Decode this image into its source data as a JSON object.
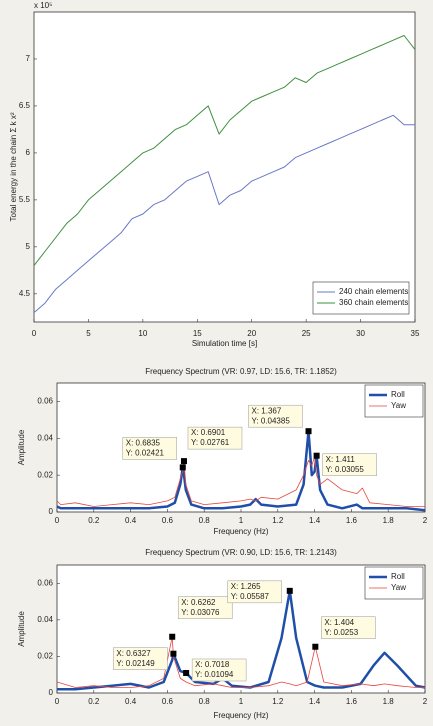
{
  "chart_data": [
    {
      "type": "line",
      "y_multiplier": "x 10⁵",
      "xlabel": "Simulation time [s]",
      "ylabel": "Total energy in the chain Σ k x²",
      "x": [
        0,
        1,
        2,
        3,
        4,
        5,
        6,
        7,
        8,
        9,
        10,
        11,
        12,
        13,
        14,
        15,
        16,
        17,
        18,
        19,
        20,
        21,
        22,
        23,
        24,
        25,
        26,
        27,
        28,
        29,
        30,
        31,
        32,
        33,
        34,
        35
      ],
      "series": [
        {
          "name": "240 chain elements",
          "color": "#6a78c8",
          "width": 1,
          "values": [
            4.3,
            4.4,
            4.55,
            4.65,
            4.75,
            4.85,
            4.95,
            5.05,
            5.15,
            5.3,
            5.35,
            5.45,
            5.5,
            5.6,
            5.7,
            5.75,
            5.8,
            5.45,
            5.55,
            5.6,
            5.7,
            5.75,
            5.8,
            5.85,
            5.95,
            6.0,
            6.05,
            6.1,
            6.15,
            6.2,
            6.25,
            6.3,
            6.35,
            6.4,
            6.3,
            6.3
          ]
        },
        {
          "name": "360 chain elements",
          "color": "#3f8f3f",
          "width": 1,
          "values": [
            4.8,
            4.95,
            5.1,
            5.25,
            5.35,
            5.5,
            5.6,
            5.7,
            5.8,
            5.9,
            6.0,
            6.05,
            6.15,
            6.25,
            6.3,
            6.4,
            6.5,
            6.2,
            6.35,
            6.45,
            6.55,
            6.6,
            6.65,
            6.7,
            6.8,
            6.75,
            6.85,
            6.9,
            6.95,
            7.0,
            7.05,
            7.1,
            7.15,
            7.2,
            7.25,
            7.1
          ]
        }
      ],
      "xlim": [
        0,
        35
      ],
      "xticks": [
        0,
        5,
        10,
        15,
        20,
        25,
        30,
        35
      ],
      "ylim": [
        4.2,
        7.5
      ],
      "yticks": [
        4.5,
        5,
        5.5,
        6,
        6.5,
        7
      ],
      "legend": "lower right"
    },
    {
      "type": "line",
      "title": "Frequency Spectrum (VR: 0.97, LD: 15.6, TR: 1.1852)",
      "xlabel": "Frequency (Hz)",
      "ylabel": "Amplitude",
      "x": [
        0,
        0.02,
        0.1,
        0.2,
        0.3,
        0.4,
        0.5,
        0.6,
        0.64,
        0.67,
        0.6835,
        0.6901,
        0.7,
        0.73,
        0.8,
        0.9,
        1.0,
        1.05,
        1.08,
        1.11,
        1.2,
        1.3,
        1.34,
        1.367,
        1.385,
        1.4,
        1.411,
        1.43,
        1.47,
        1.55,
        1.63,
        1.66,
        1.7,
        1.8,
        1.9,
        2.0
      ],
      "series": [
        {
          "name": "Roll",
          "color": "#1f4fa8",
          "width": 2.5,
          "values": [
            0.003,
            0.002,
            0.002,
            0.002,
            0.002,
            0.002,
            0.002,
            0.003,
            0.005,
            0.015,
            0.02421,
            0.02,
            0.012,
            0.004,
            0.002,
            0.002,
            0.003,
            0.004,
            0.007,
            0.004,
            0.003,
            0.004,
            0.015,
            0.04385,
            0.02,
            0.022,
            0.03055,
            0.012,
            0.004,
            0.002,
            0.004,
            0.002,
            0.002,
            0.002,
            0.002,
            0.001
          ]
        },
        {
          "name": "Yaw",
          "color": "#e8453c",
          "width": 0.8,
          "values": [
            0.006,
            0.004,
            0.005,
            0.003,
            0.004,
            0.005,
            0.004,
            0.006,
            0.008,
            0.018,
            0.022,
            0.02761,
            0.015,
            0.006,
            0.004,
            0.005,
            0.006,
            0.007,
            0.006,
            0.008,
            0.007,
            0.012,
            0.02,
            0.028,
            0.025,
            0.03,
            0.02,
            0.015,
            0.018,
            0.012,
            0.01,
            0.013,
            0.005,
            0.004,
            0.003,
            0.003
          ]
        }
      ],
      "annotations": [
        {
          "x": 0.6835,
          "y": 0.02421,
          "x_label": "X: 0.6835",
          "y_label": "Y: 0.02421"
        },
        {
          "x": 0.6901,
          "y": 0.02761,
          "x_label": "X: 0.6901",
          "y_label": "Y: 0.02761"
        },
        {
          "x": 1.367,
          "y": 0.04385,
          "x_label": "X: 1.367",
          "y_label": "Y: 0.04385"
        },
        {
          "x": 1.411,
          "y": 0.03055,
          "x_label": "X: 1.411",
          "y_label": "Y: 0.03055"
        }
      ],
      "xlim": [
        0,
        2
      ],
      "xticks": [
        0,
        0.2,
        0.4,
        0.6,
        0.8,
        1,
        1.2,
        1.4,
        1.6,
        1.8,
        2
      ],
      "ylim": [
        0,
        0.07
      ],
      "yticks": [
        0,
        0.02,
        0.04,
        0.06
      ],
      "legend": "upper right"
    },
    {
      "type": "line",
      "title": "Frequency Spectrum (VR: 0.90, LD: 15.6, TR: 1.2143)",
      "xlabel": "Frequency (Hz)",
      "ylabel": "Amplitude",
      "x": [
        0,
        0.1,
        0.2,
        0.3,
        0.4,
        0.5,
        0.58,
        0.6262,
        0.6327,
        0.67,
        0.7018,
        0.75,
        0.85,
        0.9,
        0.95,
        1.05,
        1.15,
        1.22,
        1.265,
        1.3,
        1.36,
        1.404,
        1.45,
        1.55,
        1.65,
        1.72,
        1.78,
        1.85,
        1.95,
        2.0
      ],
      "series": [
        {
          "name": "Roll",
          "color": "#1f4fa8",
          "width": 2.5,
          "values": [
            0.002,
            0.002,
            0.003,
            0.004,
            0.005,
            0.003,
            0.006,
            0.018,
            0.02149,
            0.012,
            0.01094,
            0.006,
            0.005,
            0.008,
            0.004,
            0.003,
            0.006,
            0.03,
            0.05587,
            0.03,
            0.006,
            0.004,
            0.003,
            0.003,
            0.005,
            0.015,
            0.022,
            0.015,
            0.004,
            0.003
          ]
        },
        {
          "name": "Yaw",
          "color": "#e8453c",
          "width": 0.8,
          "values": [
            0.006,
            0.003,
            0.004,
            0.003,
            0.003,
            0.004,
            0.008,
            0.03076,
            0.02,
            0.008,
            0.006,
            0.004,
            0.005,
            0.004,
            0.003,
            0.003,
            0.004,
            0.006,
            0.005,
            0.004,
            0.006,
            0.0253,
            0.006,
            0.004,
            0.005,
            0.004,
            0.005,
            0.004,
            0.003,
            0.003
          ]
        }
      ],
      "annotations": [
        {
          "x": 0.6327,
          "y": 0.02149,
          "x_label": "X: 0.6327",
          "y_label": "Y: 0.02149"
        },
        {
          "x": 0.6262,
          "y": 0.03076,
          "x_label": "X: 0.6262",
          "y_label": "Y: 0.03076"
        },
        {
          "x": 0.7018,
          "y": 0.01094,
          "x_label": "X: 0.7018",
          "y_label": "Y: 0.01094"
        },
        {
          "x": 1.265,
          "y": 0.05587,
          "x_label": "X: 1.265",
          "y_label": "Y: 0.05587"
        },
        {
          "x": 1.404,
          "y": 0.0253,
          "x_label": "X: 1.404",
          "y_label": "Y: 0.0253"
        }
      ],
      "xlim": [
        0,
        2
      ],
      "xticks": [
        0,
        0.2,
        0.4,
        0.6,
        0.8,
        1,
        1.2,
        1.4,
        1.6,
        1.8,
        2
      ],
      "ylim": [
        0,
        0.07
      ],
      "yticks": [
        0,
        0.02,
        0.04,
        0.06
      ],
      "legend": "upper right"
    }
  ]
}
